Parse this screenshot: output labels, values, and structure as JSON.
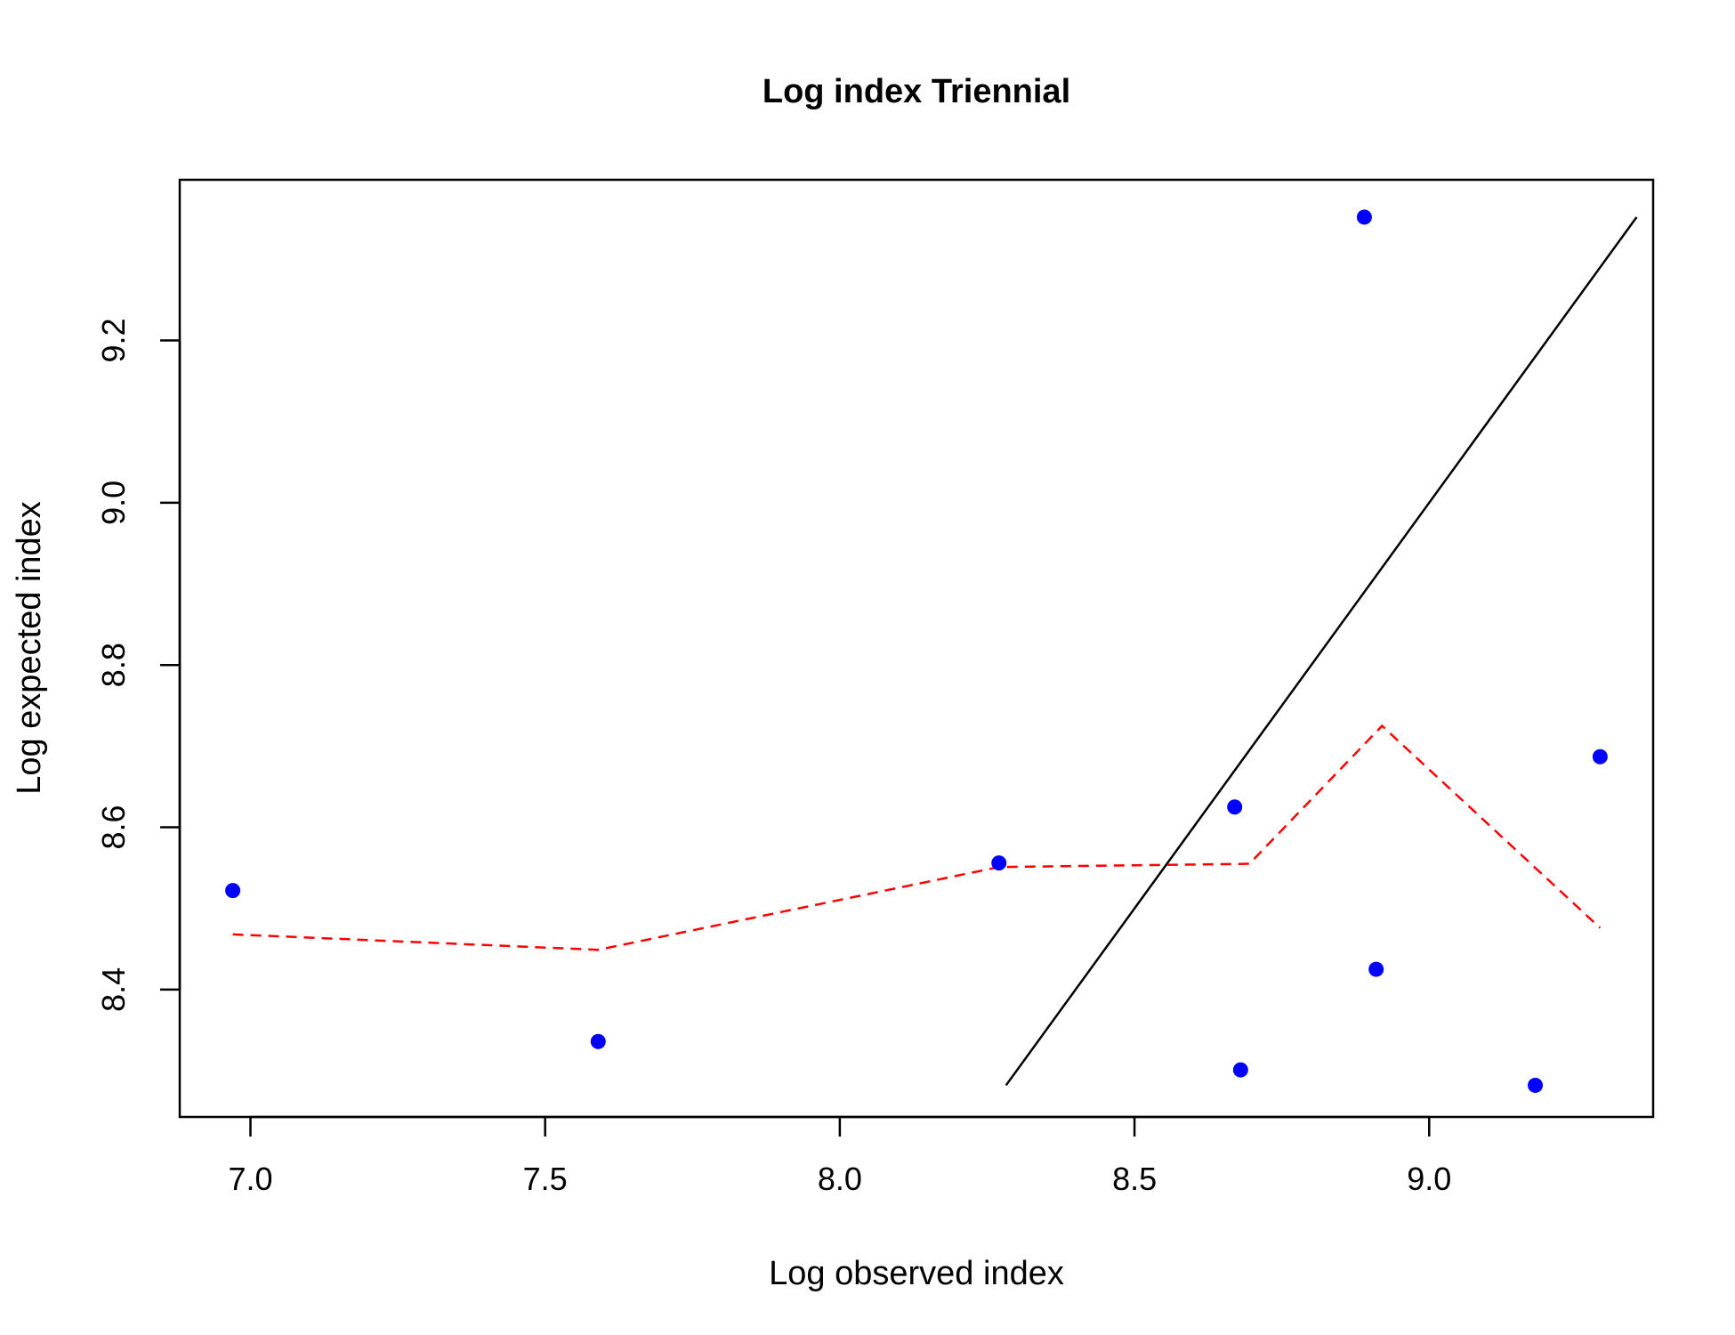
{
  "chart_data": {
    "type": "scatter",
    "title": "Log index Triennial",
    "xlabel": "Log observed index",
    "ylabel": "Log expected index",
    "xlim": [
      6.88,
      9.38
    ],
    "ylim": [
      8.243,
      9.398
    ],
    "x_ticks": [
      "7.0",
      "7.5",
      "8.0",
      "8.5",
      "9.0"
    ],
    "y_ticks": [
      "8.4",
      "8.6",
      "8.8",
      "9.0",
      "9.2"
    ],
    "grid": false,
    "legend": "none",
    "series": [
      {
        "kind": "points",
        "color": "#0000ff",
        "x": [
          6.97,
          7.59,
          8.27,
          8.67,
          8.68,
          8.89,
          8.91,
          9.18,
          9.29
        ],
        "y": [
          8.522,
          8.336,
          8.556,
          8.625,
          8.301,
          9.352,
          8.425,
          8.282,
          8.687
        ]
      },
      {
        "kind": "line",
        "style": "solid",
        "color": "#000000",
        "x": [
          8.282,
          9.352
        ],
        "y": [
          8.282,
          9.352
        ]
      },
      {
        "kind": "line",
        "style": "dashed",
        "color": "#ff0000",
        "x": [
          6.97,
          7.59,
          8.27,
          8.695,
          8.92,
          9.29
        ],
        "y": [
          8.468,
          8.449,
          8.551,
          8.555,
          8.725,
          8.476
        ]
      }
    ]
  }
}
